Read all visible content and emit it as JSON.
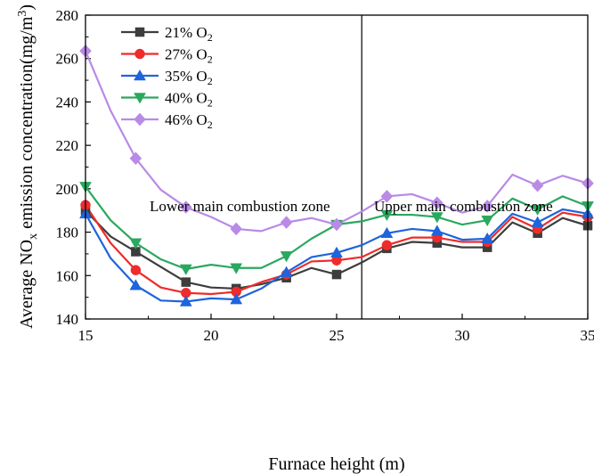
{
  "chart_data": {
    "type": "line",
    "xlabel": "Furnace height (m)",
    "ylabel_main": "Average NO",
    "ylabel_sub": "x",
    "ylabel_rest": " emission concentration(mg/m",
    "ylabel_sup": "3",
    "ylabel_close": ")",
    "xlim": [
      15,
      35
    ],
    "ylim": [
      140,
      280
    ],
    "xticks": [
      15,
      20,
      25,
      30,
      35
    ],
    "yticks": [
      140,
      160,
      180,
      200,
      220,
      240,
      260,
      280
    ],
    "divider_x": 26,
    "zones": {
      "lower": "Lower main combustion zone",
      "upper": "Upper main combustion zone"
    },
    "legend_placement": "top-left",
    "x": [
      15,
      16,
      17,
      18,
      19,
      20,
      21,
      22,
      23,
      24,
      25,
      26,
      27,
      28,
      29,
      30,
      31,
      32,
      33,
      34,
      35
    ],
    "series": [
      {
        "name": "21% O",
        "sub": "2",
        "color": "#3d3d3d",
        "marker": "square",
        "values": [
          190,
          178,
          171,
          164,
          157,
          154.5,
          154,
          156,
          159,
          163.5,
          160.5,
          166,
          172.5,
          175.5,
          175,
          173,
          173,
          184.5,
          179.5,
          186.5,
          183
        ]
      },
      {
        "name": "27% O",
        "sub": "2",
        "color": "#ef2b2b",
        "marker": "circle",
        "values": [
          192.5,
          175,
          162.5,
          154.5,
          152,
          151.5,
          152.5,
          157,
          160.5,
          166.5,
          167,
          168.5,
          174,
          177.5,
          177.5,
          175.5,
          175.5,
          187,
          181.5,
          189,
          187
        ]
      },
      {
        "name": "35% O",
        "sub": "2",
        "color": "#1e64dc",
        "marker": "triangle-up",
        "values": [
          188.5,
          168,
          155.5,
          148.5,
          148,
          149.5,
          149,
          154,
          161.5,
          168.5,
          170.5,
          174,
          179.5,
          181.5,
          180.5,
          176.5,
          177,
          188.5,
          184.5,
          190.5,
          188.5
        ]
      },
      {
        "name": "40% O",
        "sub": "2",
        "color": "#2aa85f",
        "marker": "triangle-down",
        "values": [
          201,
          185.5,
          175,
          167.5,
          163,
          165,
          163.5,
          163.5,
          169,
          177,
          183.5,
          185,
          188,
          188,
          187,
          183.5,
          185.5,
          195.5,
          190.5,
          196.5,
          192
        ]
      },
      {
        "name": "46% O",
        "sub": "2",
        "color": "#b98ae6",
        "marker": "diamond",
        "values": [
          263.5,
          236,
          214,
          199.5,
          191.5,
          187,
          181.5,
          180.5,
          184.5,
          186.5,
          183.5,
          189.5,
          196.5,
          197.5,
          193.5,
          189,
          192,
          206.5,
          201.5,
          206,
          202.5
        ]
      }
    ]
  }
}
